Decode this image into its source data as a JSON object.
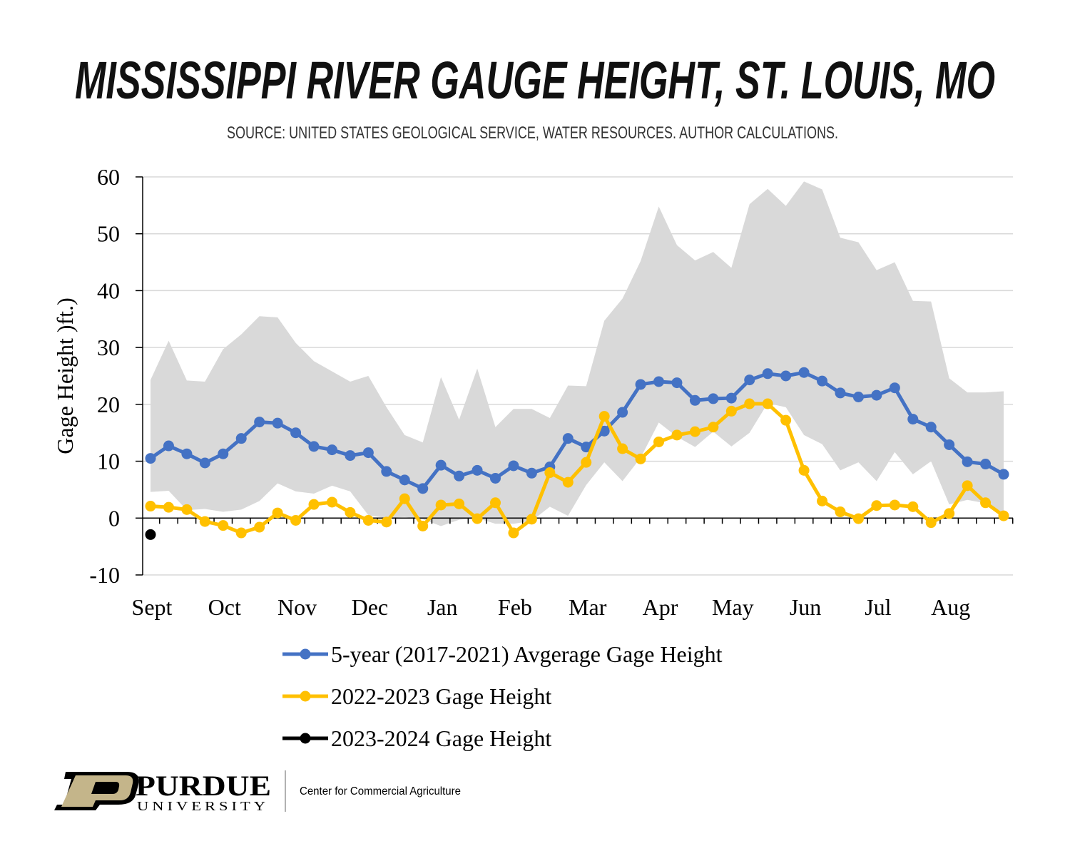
{
  "chart_data": {
    "type": "line",
    "title": "MISSISSIPPI RIVER GAUGE HEIGHT, ST. LOUIS, MO",
    "subtitle": "SOURCE: UNITED STATES GEOLOGICAL SERVICE, WATER RESOURCES. AUTHOR CALCULATIONS.",
    "y_label": "Gage Height )ft.)",
    "categories": [
      "Sept",
      null,
      null,
      null,
      "Oct",
      null,
      null,
      null,
      "Nov",
      null,
      null,
      null,
      "Dec",
      null,
      null,
      null,
      "Jan",
      null,
      null,
      null,
      "Feb",
      null,
      null,
      null,
      "Mar",
      null,
      null,
      null,
      "Apr",
      null,
      null,
      null,
      "May",
      null,
      null,
      null,
      "Jun",
      null,
      null,
      null,
      "Jul",
      null,
      null,
      null,
      "Aug",
      null,
      null,
      null
    ],
    "ylim": [
      -10,
      60
    ],
    "yticks": [
      -10,
      0,
      10,
      20,
      30,
      40,
      50,
      60
    ],
    "grid": true,
    "band": {
      "color": "#d9d9d9",
      "upper": [
        24.3,
        31.2,
        24.2,
        24,
        29.7,
        32.3,
        35.5,
        35.3,
        30.8,
        27.6,
        25.8,
        24,
        25,
        19.5,
        14.6,
        13.3,
        24.8,
        17.3,
        26.3,
        16,
        19.2,
        19.2,
        17.6,
        23.3,
        23.2,
        34.7,
        38.6,
        45.2,
        54.8,
        48,
        45.3,
        46.8,
        44,
        55.2,
        57.9,
        54.9,
        59.2,
        57.8,
        49.3,
        48.5,
        43.6,
        45,
        38.2,
        38.1,
        24.6,
        22.1,
        22.1,
        22.3
      ],
      "lower": [
        4.6,
        4.8,
        1.4,
        1.6,
        1.1,
        1.5,
        3,
        6.1,
        4.7,
        4.3,
        5.7,
        4.7,
        0.5,
        0,
        0.2,
        -0.2,
        -1.4,
        -0.3,
        0,
        -1,
        -1,
        -0.5,
        2,
        0.4,
        5.8,
        9.8,
        6.5,
        10.6,
        16.8,
        14.3,
        12.5,
        15.2,
        12.6,
        15,
        20.2,
        19.5,
        14.6,
        13,
        8.4,
        9.8,
        6.5,
        11.6,
        7.7,
        10,
        2.4,
        3.2,
        2.6,
        0
      ]
    },
    "series": [
      {
        "name": "5-year (2017-2021) Avgerage Gage Height",
        "color": "#4472c4",
        "values": [
          10.5,
          12.7,
          11.3,
          9.7,
          11.3,
          14,
          16.9,
          16.7,
          15,
          12.6,
          12,
          11,
          11.5,
          8.2,
          6.7,
          5.2,
          9.3,
          7.4,
          8.4,
          7,
          9.2,
          7.9,
          9,
          14,
          12.5,
          15.3,
          18.6,
          23.5,
          24,
          23.8,
          20.7,
          21,
          21.1,
          24.3,
          25.4,
          25,
          25.6,
          24.1,
          22,
          21.3,
          21.6,
          22.9,
          17.4,
          16,
          12.9,
          9.9,
          9.5,
          7.7
        ]
      },
      {
        "name": "2022-2023 Gage Height",
        "color": "#ffc000",
        "values": [
          2.1,
          1.9,
          1.5,
          -0.6,
          -1.3,
          -2.6,
          -1.6,
          0.9,
          -0.4,
          2.4,
          2.8,
          1,
          -0.4,
          -0.7,
          3.4,
          -1.4,
          2.3,
          2.5,
          -0.1,
          2.7,
          -2.6,
          -0.2,
          8,
          6.3,
          9.8,
          17.9,
          12.2,
          10.4,
          13.4,
          14.6,
          15.2,
          16,
          18.8,
          20.1,
          20.1,
          17.2,
          8.4,
          3,
          1.1,
          -0.1,
          2.2,
          2.3,
          2,
          -0.8,
          0.8,
          5.7,
          2.7,
          0.4
        ]
      },
      {
        "name": "2023-2024 Gage Height",
        "color": "#000000",
        "values": [
          -2.9,
          null,
          null,
          null,
          null,
          null,
          null,
          null,
          null,
          null,
          null,
          null,
          null,
          null,
          null,
          null,
          null,
          null,
          null,
          null,
          null,
          null,
          null,
          null,
          null,
          null,
          null,
          null,
          null,
          null,
          null,
          null,
          null,
          null,
          null,
          null,
          null,
          null,
          null,
          null,
          null,
          null,
          null,
          null,
          null,
          null,
          null,
          null
        ]
      }
    ]
  },
  "footer": {
    "logo_name": "PURDUE",
    "logo_sub": "UNIVERSITY",
    "unit": "Center for Commercial Agriculture"
  }
}
